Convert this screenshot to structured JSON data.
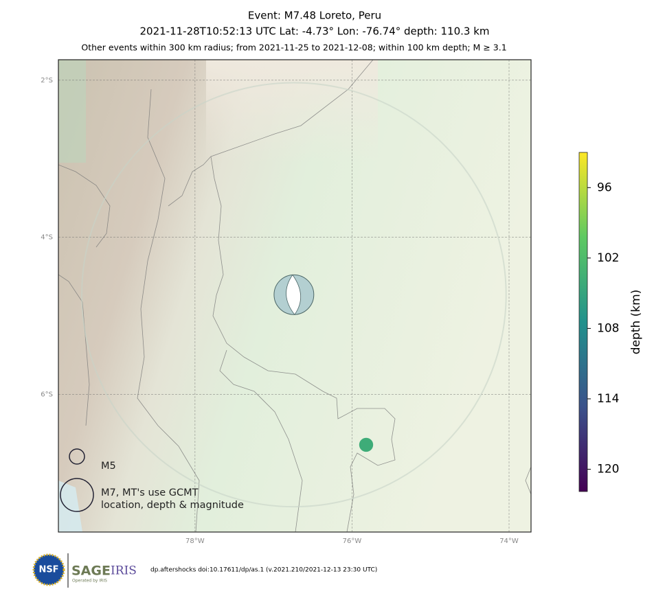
{
  "map": {
    "title": "Event: M7.48 Loreto, Peru",
    "subtitle": "2021-11-28T10:52:13 UTC Lat: -4.73° Lon: -76.74° depth: 110.3 km",
    "note": "Other events within 300 km radius; from 2021-11-25 to 2021-12-08; within 100 km depth; M ≥ 3.1",
    "xlim": [
      -79.74,
      -73.72
    ],
    "ylim": [
      -7.75,
      -1.74
    ],
    "xticks": [
      {
        "value": -78,
        "label": "78°W"
      },
      {
        "value": -76,
        "label": "76°W"
      },
      {
        "value": -74,
        "label": "74°W"
      }
    ],
    "yticks": [
      {
        "value": -2,
        "label": "2°S"
      },
      {
        "value": -4,
        "label": "4°S"
      },
      {
        "value": -6,
        "label": "6°S"
      }
    ],
    "grid": true,
    "search_radius_km": 300,
    "mainshock": {
      "lon": -76.74,
      "lat": -4.73,
      "mag": 7.48,
      "depth": 110.3
    },
    "events": {
      "lon": [
        -75.82
      ],
      "lat": [
        -6.64
      ],
      "mag": [
        4.8
      ],
      "depth": [
        104
      ]
    },
    "legend": [
      {
        "label": [
          "M5"
        ],
        "mag": 5
      },
      {
        "label": [
          "M7, MT's use GCMT",
          "location, depth & magnitude"
        ],
        "mag": 7
      }
    ],
    "colorbar": {
      "label": "depth (km)",
      "lim": [
        121.9,
        93.0
      ],
      "ticks": [
        96,
        102,
        108,
        114,
        120
      ]
    },
    "footer": {
      "logo1": "NSF",
      "logo2": "SAGE",
      "logo3": "IRIS",
      "logo_sub": "Operated by IRIS",
      "citation": "dp.aftershocks doi:10.17611/dp/as.1 (v.2021.210/2021-12-13 23:30 UTC)"
    }
  }
}
